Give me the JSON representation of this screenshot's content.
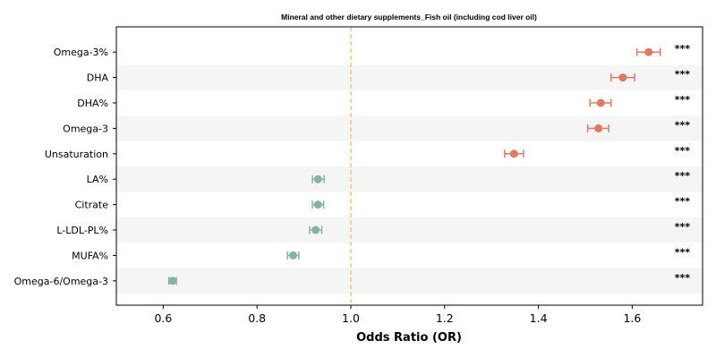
{
  "chart_data": {
    "type": "forest",
    "title": "Mineral and other dietary supplements_Fish oil (including cod liver oil)",
    "xlabel": "Odds Ratio (OR)",
    "ylabel": "",
    "xlim": [
      0.5,
      1.75
    ],
    "xticks": [
      0.6,
      0.8,
      1.0,
      1.2,
      1.4,
      1.6
    ],
    "xtick_labels": [
      "0.6",
      "0.8",
      "1.0",
      "1.2",
      "1.4",
      "1.6"
    ],
    "reference_line": 1.0,
    "grid": false,
    "colors": {
      "positive": "#e07b5f",
      "negative": "#86b59f",
      "reference": "#f5c57e",
      "band": "#f5f5f5"
    },
    "rows": [
      {
        "label": "Omega-3%",
        "or": 1.635,
        "lo": 1.61,
        "hi": 1.66,
        "sig": "***"
      },
      {
        "label": "DHA",
        "or": 1.58,
        "lo": 1.555,
        "hi": 1.605,
        "sig": "***"
      },
      {
        "label": "DHA%",
        "or": 1.533,
        "lo": 1.51,
        "hi": 1.555,
        "sig": "***"
      },
      {
        "label": "Omega-3",
        "or": 1.528,
        "lo": 1.505,
        "hi": 1.55,
        "sig": "***"
      },
      {
        "label": "Unsaturation",
        "or": 1.348,
        "lo": 1.328,
        "hi": 1.368,
        "sig": "***"
      },
      {
        "label": "LA%",
        "or": 0.93,
        "lo": 0.918,
        "hi": 0.943,
        "sig": "***"
      },
      {
        "label": "Citrate",
        "or": 0.93,
        "lo": 0.918,
        "hi": 0.942,
        "sig": "***"
      },
      {
        "label": "L-LDL-PL%",
        "or": 0.925,
        "lo": 0.912,
        "hi": 0.938,
        "sig": "***"
      },
      {
        "label": "MUFA%",
        "or": 0.877,
        "lo": 0.865,
        "hi": 0.889,
        "sig": "***"
      },
      {
        "label": "Omega-6/Omega-3",
        "or": 0.62,
        "lo": 0.612,
        "hi": 0.628,
        "sig": "***"
      }
    ]
  }
}
